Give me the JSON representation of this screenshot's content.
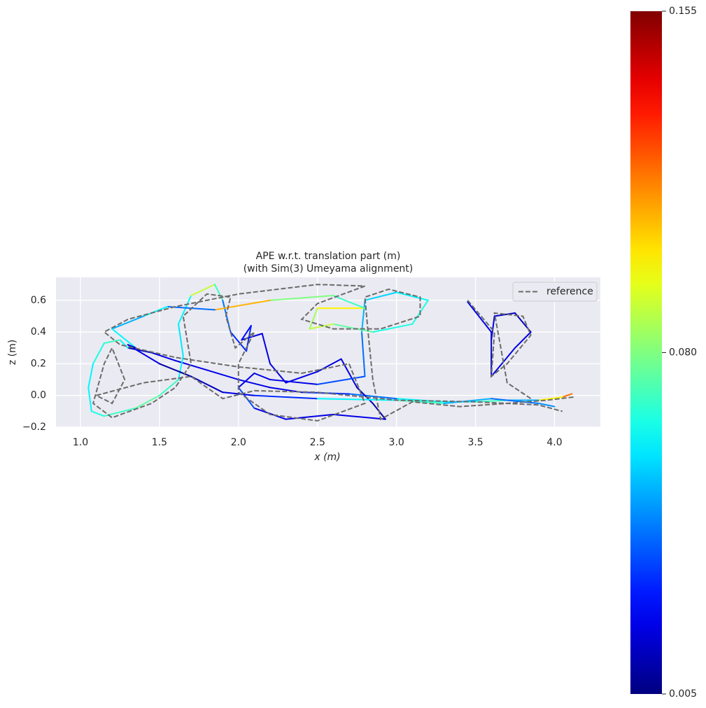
{
  "chart_data": {
    "type": "line",
    "title": "APE w.r.t. translation part (m)",
    "subtitle": "(with Sim(3) Umeyama alignment)",
    "x_label": "x (m)",
    "y_label": "z (m)",
    "xlim": [
      0.845,
      4.29
    ],
    "ylim": [
      -0.2,
      0.745
    ],
    "xticks": [
      {
        "value": 1,
        "label": "1.0"
      },
      {
        "value": 1.5,
        "label": "1.5"
      },
      {
        "value": 2,
        "label": "2.0"
      },
      {
        "value": 2.5,
        "label": "2.5"
      },
      {
        "value": 3,
        "label": "3.0"
      },
      {
        "value": 3.5,
        "label": "3.5"
      },
      {
        "value": 4,
        "label": "4.0"
      }
    ],
    "yticks": [
      {
        "value": -0.2,
        "label": "−0.2"
      },
      {
        "value": 0,
        "label": "0.0"
      },
      0.2,
      0.4,
      0.6
    ],
    "grid": true,
    "background": "#eaeaf2",
    "legend_position": "upper-right",
    "colormap": "jet",
    "clim": [
      0.005,
      0.155
    ],
    "colorbar_ticks": [
      0.005,
      {
        "value": 0.08,
        "label": "0.080"
      },
      0.155
    ],
    "series": [
      {
        "x": [
          4.11,
          4.05,
          3.9,
          3.7,
          3.5,
          3.3,
          3.0,
          2.7,
          2.4,
          2.2,
          2.0,
          1.8,
          1.6,
          1.45,
          1.3,
          1.25,
          1.15,
          1.08,
          1.05,
          1.07,
          1.15,
          1.35,
          1.5,
          1.62,
          1.65,
          1.62,
          1.7,
          1.85,
          1.9,
          1.95,
          2.05,
          2.08,
          2.02,
          2.15,
          2.2,
          2.3,
          2.5,
          2.65,
          2.75,
          2.85,
          2.93,
          2.6,
          2.3,
          2.1,
          2.0,
          2.1,
          2.2,
          2.5,
          2.8,
          2.78,
          2.8,
          3.0,
          3.2,
          3.1,
          2.85,
          2.6,
          2.45,
          2.5,
          2.8,
          2.6,
          2.2,
          1.85,
          1.55,
          1.4,
          1.2,
          1.35,
          1.3,
          1.5,
          1.7,
          1.9,
          2.1,
          2.5,
          3.0,
          3.3,
          3.6,
          3.9,
          4.0,
          null,
          3.45,
          3.6,
          3.6,
          3.75,
          3.85,
          3.75,
          3.62,
          3.6
        ],
        "values": [
          0.01,
          -0.01,
          -0.03,
          -0.03,
          -0.04,
          -0.04,
          -0.02,
          0.01,
          0.02,
          0.05,
          0.1,
          0.16,
          0.22,
          0.27,
          0.3,
          0.35,
          0.33,
          0.2,
          0.05,
          -0.1,
          -0.13,
          -0.08,
          0.0,
          0.1,
          0.25,
          0.45,
          0.63,
          0.7,
          0.6,
          0.4,
          0.28,
          0.44,
          0.35,
          0.39,
          0.2,
          0.08,
          0.15,
          0.23,
          0.05,
          -0.05,
          -0.15,
          -0.12,
          -0.15,
          -0.08,
          0.05,
          0.14,
          0.1,
          0.07,
          0.12,
          0.4,
          0.6,
          0.65,
          0.6,
          0.45,
          0.4,
          0.45,
          0.42,
          0.55,
          0.55,
          0.63,
          0.6,
          0.54,
          0.56,
          0.5,
          0.42,
          0.3,
          0.32,
          0.2,
          0.12,
          0.02,
          0.0,
          -0.02,
          -0.03,
          -0.05,
          -0.02,
          -0.05,
          -0.07,
          null,
          0.59,
          0.4,
          0.12,
          0.3,
          0.4,
          0.52,
          0.5,
          0.35
        ],
        "errors": [
          0.155,
          0.12,
          0.1,
          0.05,
          0.07,
          0.06,
          0.06,
          0.04,
          0.03,
          0.02,
          0.02,
          0.02,
          0.02,
          0.02,
          0.015,
          0.06,
          0.07,
          0.065,
          0.06,
          0.06,
          0.065,
          0.07,
          0.075,
          0.07,
          0.06,
          0.058,
          0.06,
          0.09,
          0.07,
          0.04,
          0.03,
          0.03,
          0.025,
          0.02,
          0.02,
          0.02,
          0.02,
          0.02,
          0.02,
          0.015,
          0.01,
          0.02,
          0.02,
          0.02,
          0.035,
          0.02,
          0.02,
          0.02,
          0.035,
          0.04,
          0.05,
          0.055,
          0.06,
          0.065,
          0.065,
          0.075,
          0.09,
          0.085,
          0.1,
          0.07,
          0.08,
          0.11,
          0.04,
          0.06,
          0.05,
          0.06,
          0.015,
          0.02,
          0.01,
          0.015,
          0.02,
          0.03,
          0.06,
          0.07,
          0.05,
          0.04,
          0.045,
          null,
          0.02,
          0.02,
          0.015,
          0.02,
          0.02,
          0.015,
          0.015,
          0.02
        ]
      },
      {
        "name": "reference",
        "color": "#6b6b6b",
        "linestyle": "dashed",
        "x": [
          4.12,
          3.95,
          3.7,
          3.4,
          3.1,
          2.9,
          2.85,
          2.82,
          2.8,
          2.95,
          3.15,
          3.15,
          2.9,
          2.6,
          2.4,
          2.5,
          2.8,
          2.5,
          2.0,
          1.6,
          1.3,
          1.15,
          1.25,
          1.6,
          2.0,
          2.4,
          2.7,
          2.8,
          2.5,
          2.2,
          2.0,
          2.0,
          2.1,
          1.98,
          1.92,
          1.95,
          1.8,
          1.65,
          1.7,
          1.6,
          1.45,
          1.2,
          1.08,
          1.15,
          1.2,
          1.28,
          1.2,
          1.1,
          1.4,
          1.7,
          1.9,
          2.1,
          2.5,
          3.0,
          3.5,
          3.9,
          4.05,
          null,
          3.45,
          3.62,
          3.6,
          3.7,
          3.85,
          3.8,
          3.62,
          3.7,
          3.85
        ],
        "values": [
          -0.01,
          -0.03,
          -0.05,
          -0.07,
          -0.04,
          -0.15,
          0.1,
          0.4,
          0.62,
          0.67,
          0.62,
          0.5,
          0.42,
          0.42,
          0.48,
          0.58,
          0.69,
          0.7,
          0.64,
          0.56,
          0.48,
          0.4,
          0.32,
          0.24,
          0.18,
          0.14,
          0.2,
          -0.05,
          -0.16,
          -0.12,
          0.02,
          0.2,
          0.4,
          0.3,
          0.5,
          0.62,
          0.64,
          0.5,
          0.2,
          0.05,
          -0.05,
          -0.14,
          -0.05,
          0.2,
          0.3,
          0.1,
          -0.05,
          0.0,
          0.08,
          0.12,
          -0.02,
          0.03,
          0.02,
          -0.03,
          -0.04,
          -0.06,
          -0.1,
          null,
          0.6,
          0.4,
          0.12,
          0.2,
          0.38,
          0.5,
          0.52,
          0.08,
          -0.02
        ]
      }
    ]
  }
}
